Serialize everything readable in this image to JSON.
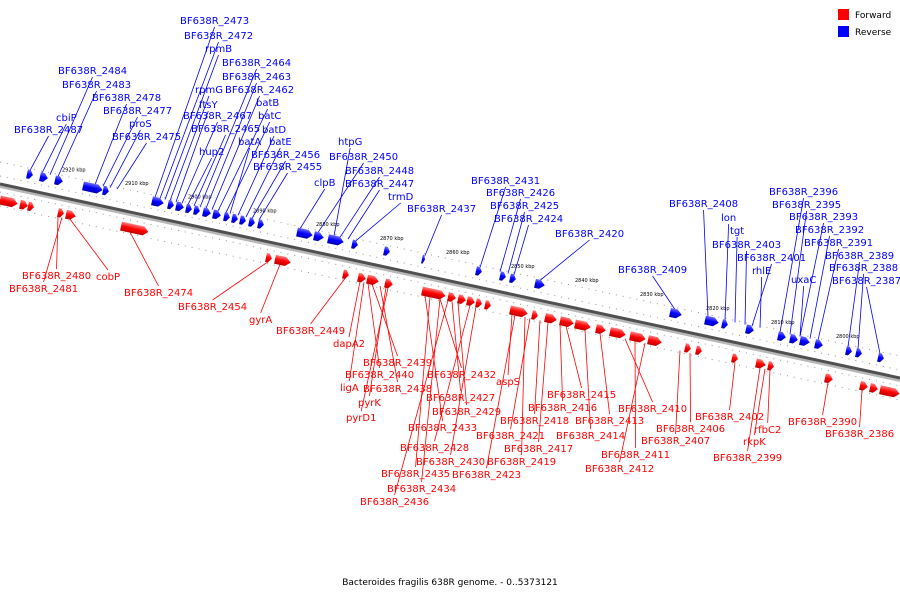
{
  "legend": {
    "forward_label": "Forward",
    "reverse_label": "Reverse",
    "forward_color": "#ff0000",
    "reverse_color": "#0000ff"
  },
  "caption": "Bacteroides fragilis 638R genome. - 0..5373121",
  "scale_ticks": [
    "2920 kbp",
    "2910 kbp",
    "2900 kbp",
    "2890 kbp",
    "2880 kbp",
    "2870 kbp",
    "2860 kbp",
    "2850 kbp",
    "2840 kbp",
    "2830 kbp",
    "2820 kbp",
    "2810 kbp",
    "2800 kbp"
  ],
  "reverse_genes": [
    "BF638R_2487",
    "cbiP",
    "BF638R_2484",
    "BF638R_2483",
    "BF638R_2478",
    "BF638R_2477",
    "proS",
    "BF638R_2475",
    "BF638R_2473",
    "BF638R_2472",
    "rpmB",
    "rpmG",
    "ftsY",
    "BF638R_2467",
    "hup2",
    "BF638R_2465",
    "BF638R_2464",
    "BF638R_2463",
    "BF638R_2462",
    "batB",
    "batC",
    "batA",
    "batD",
    "batE",
    "BF638R_2456",
    "BF638R_2455",
    "clpB",
    "BF638R_2450",
    "htpG",
    "BF638R_2448",
    "BF638R_2447",
    "trmD",
    "BF638R_2437",
    "BF638R_2431",
    "BF638R_2426",
    "BF638R_2425",
    "BF638R_2424",
    "BF638R_2420",
    "BF638R_2409",
    "BF638R_2408",
    "lon",
    "tgt",
    "BF638R_2403",
    "BF638R_2401",
    "rhlE",
    "BF638R_2396",
    "BF638R_2395",
    "BF638R_2393",
    "BF638R_2392",
    "BF638R_2391",
    "uxaC",
    "BF638R_2389",
    "BF638R_2388",
    "BF638R_2387"
  ],
  "forward_genes": [
    "BF638R_2480",
    "BF638R_2481",
    "cobP",
    "BF638R_2474",
    "BF638R_2454",
    "gyrA",
    "BF638R_2449",
    "dapA2",
    "BF638R_2439",
    "BF638R_2440",
    "ligA",
    "BF638R_2438",
    "pyrK",
    "pyrD1",
    "BF638R_2432",
    "BF638R_2427",
    "BF638R_2429",
    "BF638R_2433",
    "BF638R_2428",
    "BF638R_2430",
    "BF638R_2435",
    "BF638R_2434",
    "BF638R_2436",
    "aspS",
    "BF638R_2421",
    "BF638R_2418",
    "BF638R_2417",
    "BF638R_2419",
    "BF638R_2423",
    "BF638R_2416",
    "BF638R_2415",
    "BF638R_2414",
    "BF638R_2413",
    "BF638R_2412",
    "BF638R_2411",
    "BF638R_2410",
    "BF638R_2406",
    "BF638R_2407",
    "BF638R_2402",
    "BF638R_2399",
    "rkpK",
    "rfbC2",
    "BF638R_2390",
    "BF638R_2386"
  ]
}
